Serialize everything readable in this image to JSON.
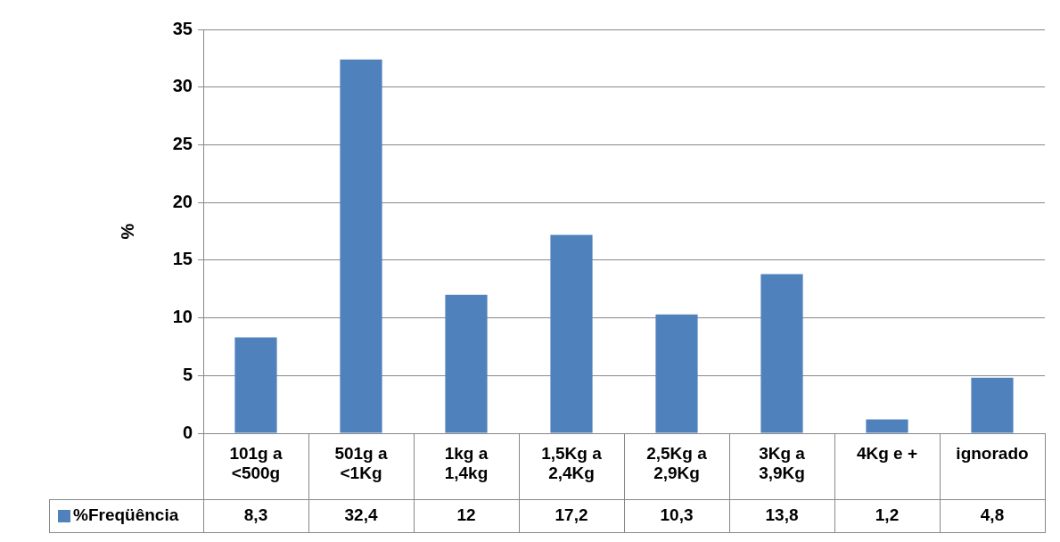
{
  "chart_data": {
    "type": "bar",
    "ylabel": "%",
    "categories": [
      "101g a <500g",
      "501g a <1Kg",
      "1kg a 1,4kg",
      "1,5Kg a 2,4Kg",
      "2,5Kg a 2,9Kg",
      "3Kg a 3,9Kg",
      "4Kg e +",
      "ignorado"
    ],
    "series": [
      {
        "name": "%Freqüência",
        "color": "#4f81bd",
        "values": [
          8.3,
          32.4,
          12,
          17.2,
          10.3,
          13.8,
          1.2,
          4.8
        ],
        "value_labels": [
          "8,3",
          "32,4",
          "12",
          "17,2",
          "10,3",
          "13,8",
          "1,2",
          "4,8"
        ]
      }
    ],
    "ylim": [
      0,
      35
    ],
    "yticks": [
      0,
      5,
      10,
      15,
      20,
      25,
      30,
      35
    ],
    "grid": "y",
    "legend": "bottom"
  }
}
